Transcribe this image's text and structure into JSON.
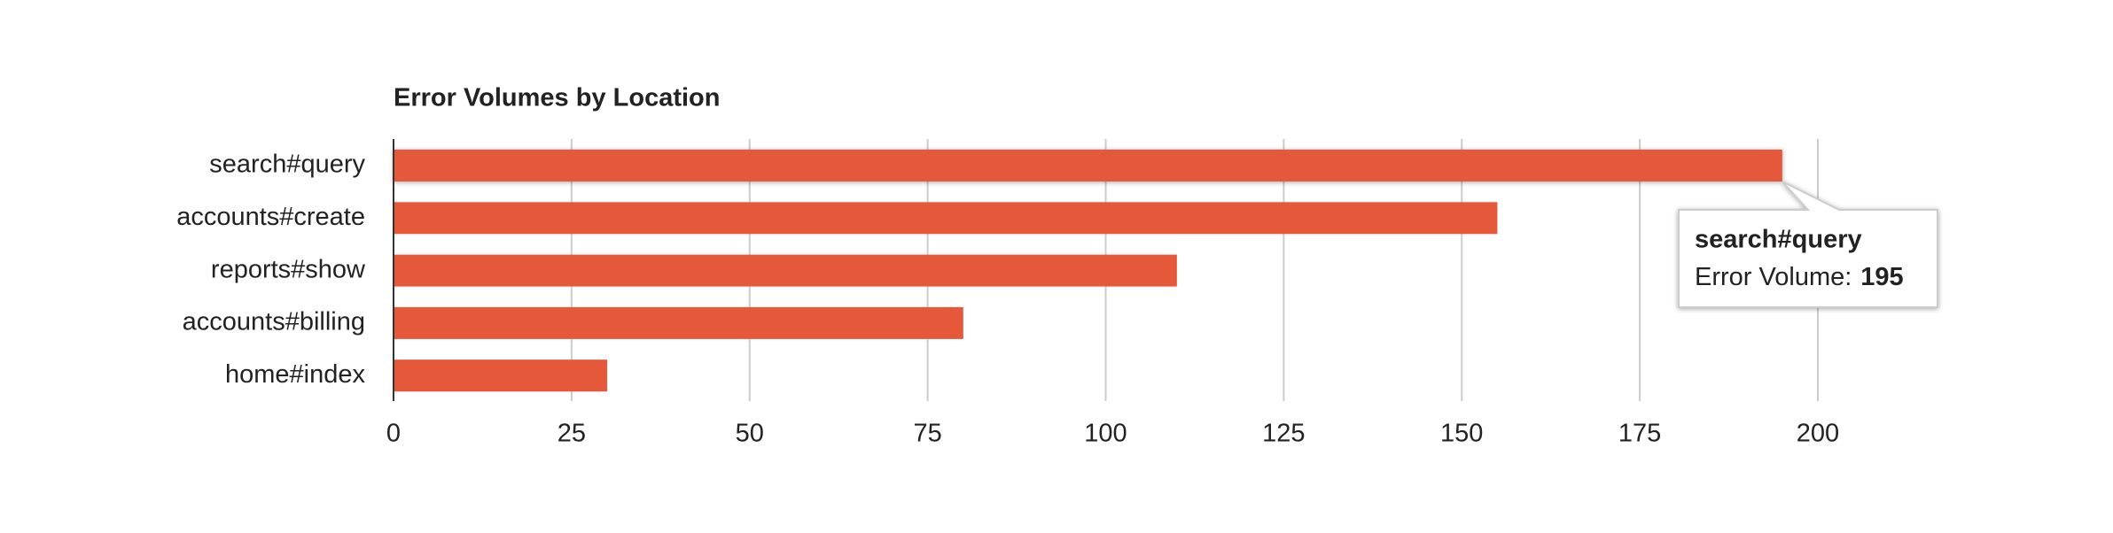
{
  "chart_data": {
    "type": "hbar",
    "title": "Error Volumes by Location",
    "categories": [
      "search#query",
      "accounts#create",
      "reports#show",
      "accounts#billing",
      "home#index"
    ],
    "series": [
      {
        "name": "Error Volume",
        "color": "#e5583a",
        "values": [
          195,
          155,
          110,
          80,
          30
        ]
      }
    ],
    "xlim": [
      0,
      200
    ],
    "xticks": [
      0,
      25,
      50,
      75,
      100,
      125,
      150,
      175,
      200
    ],
    "grid": true,
    "tooltip": {
      "label": "Error Volume:"
    }
  }
}
